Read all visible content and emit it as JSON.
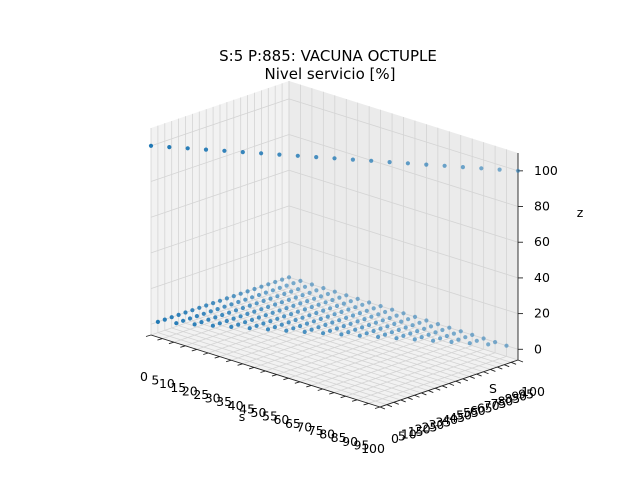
{
  "chart_data": {
    "type": "scatter3d",
    "title": "S:5 P:885: VACUNA OCTUPLE",
    "subtitle": "Nivel servicio [%]",
    "xlabel": "s",
    "ylabel": "S",
    "zlabel": "z",
    "xlim": [
      0,
      100
    ],
    "ylim": [
      0,
      100
    ],
    "zlim": [
      -6,
      110
    ],
    "grid": true,
    "marker_color": "#1f77b4",
    "x_ticks": [
      "0",
      "5",
      "10",
      "15",
      "20",
      "25",
      "30",
      "35",
      "40",
      "45",
      "50",
      "55",
      "60",
      "65",
      "70",
      "75",
      "80",
      "85",
      "90",
      "95",
      "100"
    ],
    "y_ticks": [
      "0",
      "5",
      "10",
      "15",
      "20",
      "25",
      "30",
      "35",
      "40",
      "45",
      "50",
      "55",
      "60",
      "65",
      "70",
      "75",
      "80",
      "85",
      "90",
      "95",
      "100"
    ],
    "z_ticks": [
      "0",
      "20",
      "40",
      "60",
      "80",
      "100"
    ],
    "points_rule": "grid of s and S in steps of 5 with s <= S; z = 100 where s = S, otherwise 0",
    "series": [
      {
        "name": "",
        "points": [
          [
            0,
            0,
            100
          ],
          [
            5,
            5,
            100
          ],
          [
            10,
            10,
            100
          ],
          [
            15,
            15,
            100
          ],
          [
            20,
            20,
            100
          ],
          [
            25,
            25,
            100
          ],
          [
            30,
            30,
            100
          ],
          [
            35,
            35,
            100
          ],
          [
            40,
            40,
            100
          ],
          [
            45,
            45,
            100
          ],
          [
            50,
            50,
            100
          ],
          [
            55,
            55,
            100
          ],
          [
            60,
            60,
            100
          ],
          [
            65,
            65,
            100
          ],
          [
            70,
            70,
            100
          ],
          [
            75,
            75,
            100
          ],
          [
            80,
            80,
            100
          ],
          [
            85,
            85,
            100
          ],
          [
            90,
            90,
            100
          ],
          [
            95,
            95,
            100
          ],
          [
            100,
            100,
            100
          ]
        ]
      }
    ]
  }
}
